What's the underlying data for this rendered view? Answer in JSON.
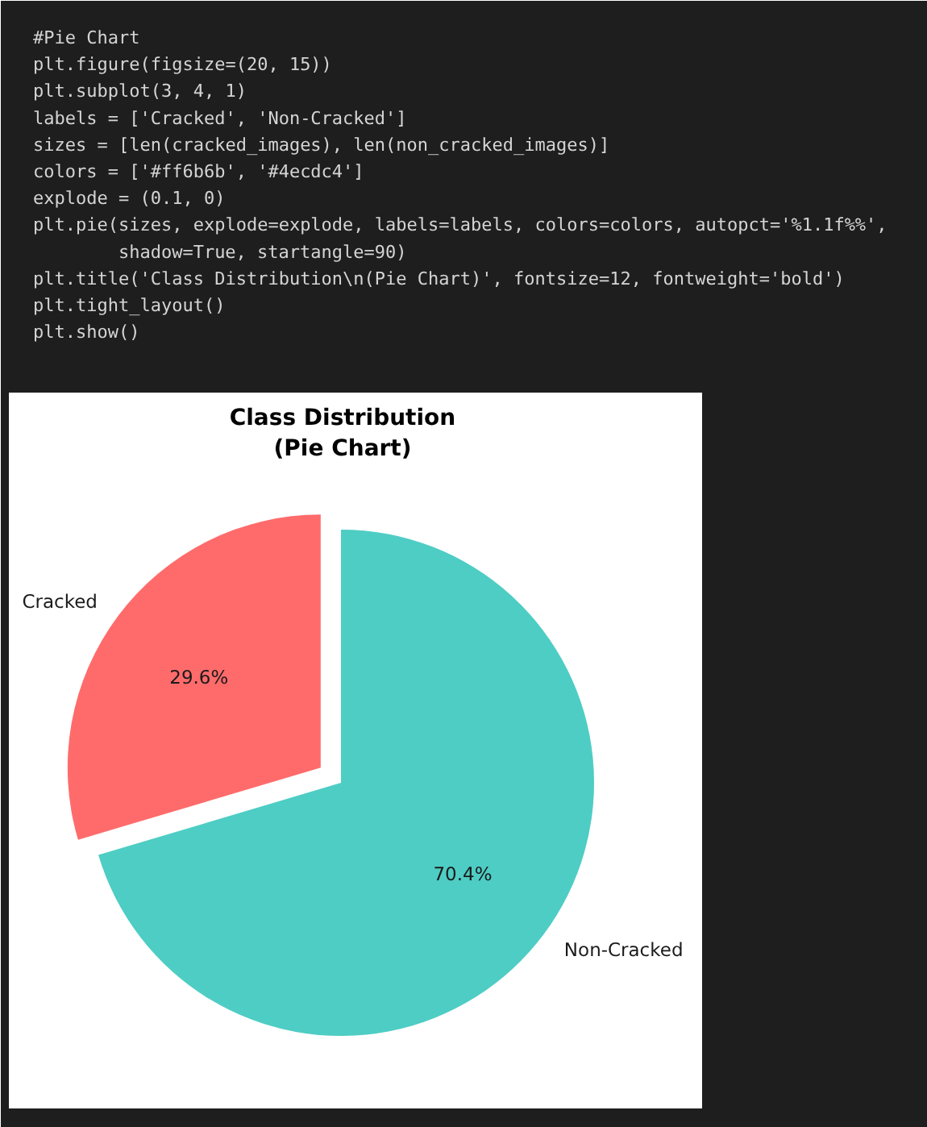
{
  "chart_data": {
    "type": "pie",
    "title": "Class Distribution\n(Pie Chart)",
    "categories": [
      "Cracked",
      "Non-Cracked"
    ],
    "values": [
      29.6,
      70.4
    ],
    "colors": [
      "#ff6b6b",
      "#4ecdc4"
    ],
    "value_labels": [
      "29.6%",
      "70.4%"
    ],
    "annotations": [
      "#Pie Chart",
      "plt.figure(figsize=(20, 15))",
      "plt.subplot(3, 4, 1)",
      "labels = ['Cracked', 'Non-Cracked']",
      "sizes = [len(cracked_images), len(non_cracked_images)]",
      "colors = ['#ff6b6b', '#4ecdc4']",
      "explode = (0.1, 0)",
      "plt.pie(sizes, explode=explode, labels=labels, colors=colors, autopct='%1.1f%%',",
      "        shadow=True, startangle=90)",
      "plt.title('Class Distribution\\n(Pie Chart)', fontsize=12, fontweight='bold')",
      "plt.tight_layout()",
      "plt.show()"
    ]
  }
}
